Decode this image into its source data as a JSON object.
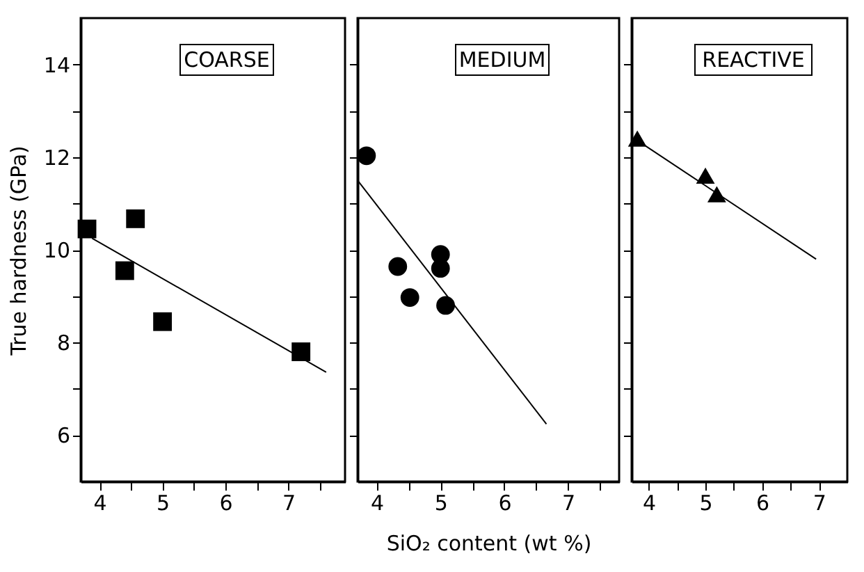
{
  "chart_data": [
    {
      "type": "scatter",
      "title": "COARSE",
      "ylabel": "True hardness (GPa)",
      "xlim": [
        3.7,
        7.9
      ],
      "ylim": [
        5,
        15
      ],
      "xticks": [
        4,
        {
          "value": 4.5,
          "label": null
        },
        5,
        {
          "value": 5.5,
          "label": null
        },
        6,
        {
          "value": 6.5,
          "label": null
        },
        7,
        {
          "value": 7.5,
          "label": null
        }
      ],
      "yticks": [
        6,
        {
          "value": 7,
          "label": null
        },
        8,
        {
          "value": 9,
          "label": null
        },
        10,
        {
          "value": 11,
          "label": null
        },
        12,
        {
          "value": 13,
          "label": null
        },
        14
      ],
      "marker": "square",
      "grid": false,
      "series": [
        {
          "color": "#000000",
          "x": [
            3.8,
            4.57,
            4.4,
            5.0,
            7.2
          ],
          "values": [
            10.45,
            10.67,
            9.55,
            8.45,
            7.8
          ]
        },
        {
          "type": "line",
          "marker": "none",
          "color": "#000000",
          "x": [
            3.88,
            7.6
          ],
          "values": [
            10.25,
            7.36
          ]
        }
      ]
    },
    {
      "type": "scatter",
      "title": "MEDIUM",
      "xlabel": "SiO₂ content (wt %)",
      "xlim": [
        3.7,
        7.8
      ],
      "ylim": [
        5,
        15
      ],
      "tick_labels": "x",
      "xticks": [
        4,
        {
          "value": 4.5,
          "label": null
        },
        5,
        {
          "value": 5.5,
          "label": null
        },
        6,
        {
          "value": 6.5,
          "label": null
        },
        7,
        {
          "value": 7.5,
          "label": null
        }
      ],
      "yticks": [
        6,
        7,
        8,
        9,
        10,
        11,
        12,
        13,
        14
      ],
      "marker": "circle",
      "grid": false,
      "series": [
        {
          "color": "#000000",
          "x": [
            3.84,
            4.33,
            4.52,
            5.0,
            5.0,
            5.08
          ],
          "values": [
            12.03,
            9.64,
            8.97,
            9.9,
            9.6,
            8.8
          ]
        },
        {
          "type": "line",
          "marker": "none",
          "color": "#000000",
          "x": [
            3.7,
            6.66
          ],
          "values": [
            11.5,
            6.24
          ]
        }
      ]
    },
    {
      "type": "scatter",
      "title": "REACTIVE",
      "xlim": [
        3.7,
        7.5
      ],
      "ylim": [
        5,
        15
      ],
      "tick_labels": "x",
      "xticks": [
        4,
        {
          "value": 4.5,
          "label": null
        },
        5,
        {
          "value": 5.5,
          "label": null
        },
        6,
        {
          "value": 6.5,
          "label": null
        },
        7
      ],
      "yticks": [
        6,
        7,
        8,
        9,
        10,
        11,
        12,
        13,
        14
      ],
      "marker": "triangle",
      "grid": false,
      "series": [
        {
          "color": "#000000",
          "x": [
            3.8,
            5.0,
            5.2
          ],
          "values": [
            12.4,
            11.6,
            11.2
          ]
        },
        {
          "type": "line",
          "marker": "none",
          "color": "#000000",
          "x": [
            3.75,
            6.95
          ],
          "values": [
            12.4,
            9.8
          ]
        }
      ]
    }
  ]
}
